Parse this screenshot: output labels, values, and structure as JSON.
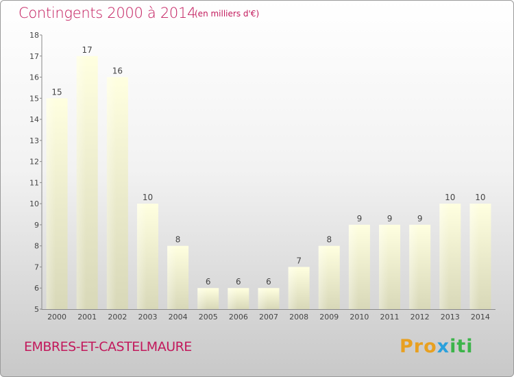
{
  "header": {
    "title": "Contingents 2000 à 2014",
    "subtitle": "(en milliers d'€)"
  },
  "footer": {
    "commune": "EMBRES-ET-CASTELMAURE",
    "logo_part1": "Pro",
    "logo_part2": "x",
    "logo_part3": "iti"
  },
  "colors": {
    "title": "#c2185b",
    "bar_top": "#ffffe0",
    "bar_bottom": "#d8d8b8"
  },
  "chart_data": {
    "type": "bar",
    "categories": [
      "2000",
      "2001",
      "2002",
      "2003",
      "2004",
      "2005",
      "2006",
      "2007",
      "2008",
      "2009",
      "2010",
      "2011",
      "2012",
      "2013",
      "2014"
    ],
    "values": [
      15,
      17,
      16,
      10,
      8,
      6,
      6,
      6,
      7,
      8,
      9,
      9,
      9,
      10,
      10
    ],
    "title": "Contingents 2000 à 2014",
    "ylim": [
      5,
      18
    ],
    "yticks": [
      5,
      6,
      7,
      8,
      9,
      10,
      11,
      12,
      13,
      14,
      15,
      16,
      17,
      18
    ],
    "grid": false,
    "data_labels": true
  }
}
